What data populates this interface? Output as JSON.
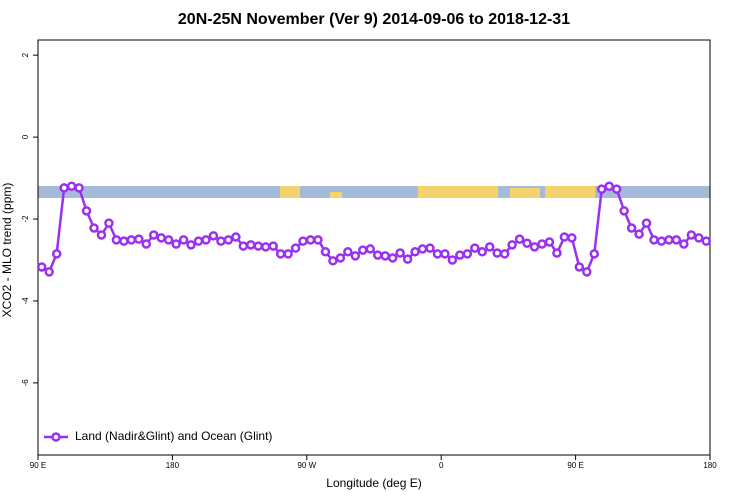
{
  "chart_data": {
    "type": "line",
    "title": "20N-25N November (Ver 9)   2014-09-06 to 2018-12-31",
    "x_label": "Longitude (deg E)",
    "y_label": "XCO2 - MLO trend (ppm)",
    "xlim": [
      90,
      540
    ],
    "ylim": [
      -7.76,
      2.37
    ],
    "xticks": [
      {
        "value": 90,
        "label": "90 E"
      },
      180,
      {
        "value": 270,
        "label": "90 W"
      },
      {
        "value": 360,
        "label": "0"
      },
      {
        "value": 450,
        "label": "90 E"
      },
      {
        "value": 540,
        "label": "180"
      }
    ],
    "yticks": [
      2,
      0,
      -2,
      -4,
      -6
    ],
    "legend": "bottom-left",
    "x": [
      92.5,
      97.5,
      102.5,
      107.5,
      112.5,
      117.5,
      122.5,
      127.5,
      132.5,
      137.5,
      142.5,
      147.5,
      152.5,
      157.5,
      162.5,
      167.5,
      172.5,
      177.5,
      182.5,
      187.5,
      192.5,
      197.5,
      202.5,
      207.5,
      212.5,
      217.5,
      222.5,
      227.5,
      232.5,
      237.5,
      242.5,
      247.5,
      252.5,
      257.5,
      262.5,
      267.5,
      272.5,
      277.5,
      282.5,
      287.5,
      292.5,
      297.5,
      302.5,
      307.5,
      312.5,
      317.5,
      322.5,
      327.5,
      332.5,
      337.5,
      342.5,
      347.5,
      352.5,
      357.5,
      362.5,
      367.5,
      372.5,
      377.5,
      382.5,
      387.5,
      392.5,
      397.5,
      402.5,
      407.5,
      412.5,
      417.5,
      422.5,
      427.5,
      432.5,
      437.5,
      442.5,
      447.5,
      452.5,
      457.5,
      462.5,
      467.5,
      472.5,
      477.5,
      482.5,
      487.5,
      492.5,
      497.5,
      502.5,
      507.5,
      512.5,
      517.5,
      522.5,
      527.5,
      532.5,
      537.5
    ],
    "series": [
      {
        "name": "Land (Nadir&Glint) and Ocean (Glint)",
        "color": "#9b30f0",
        "values": [
          -3.17,
          -3.29,
          -2.85,
          -1.24,
          -1.2,
          -1.24,
          -1.8,
          -2.22,
          -2.39,
          -2.1,
          -2.51,
          -2.54,
          -2.51,
          -2.49,
          -2.61,
          -2.39,
          -2.46,
          -2.51,
          -2.61,
          -2.51,
          -2.63,
          -2.54,
          -2.51,
          -2.41,
          -2.54,
          -2.51,
          -2.44,
          -2.66,
          -2.63,
          -2.66,
          -2.68,
          -2.66,
          -2.85,
          -2.85,
          -2.71,
          -2.54,
          -2.51,
          -2.51,
          -2.8,
          -3.02,
          -2.95,
          -2.8,
          -2.9,
          -2.76,
          -2.73,
          -2.88,
          -2.9,
          -2.95,
          -2.83,
          -2.98,
          -2.8,
          -2.73,
          -2.71,
          -2.85,
          -2.85,
          -3.0,
          -2.88,
          -2.85,
          -2.71,
          -2.8,
          -2.68,
          -2.83,
          -2.85,
          -2.63,
          -2.49,
          -2.59,
          -2.68,
          -2.61,
          -2.56,
          -2.83,
          -2.44,
          -2.46,
          -3.17,
          -3.29,
          -2.85,
          -1.27,
          -1.2,
          -1.27,
          -1.8,
          -2.22,
          -2.37,
          -2.1,
          -2.51,
          -2.54,
          -2.51,
          -2.51,
          -2.61,
          -2.39,
          -2.46,
          -2.54
        ]
      }
    ]
  }
}
